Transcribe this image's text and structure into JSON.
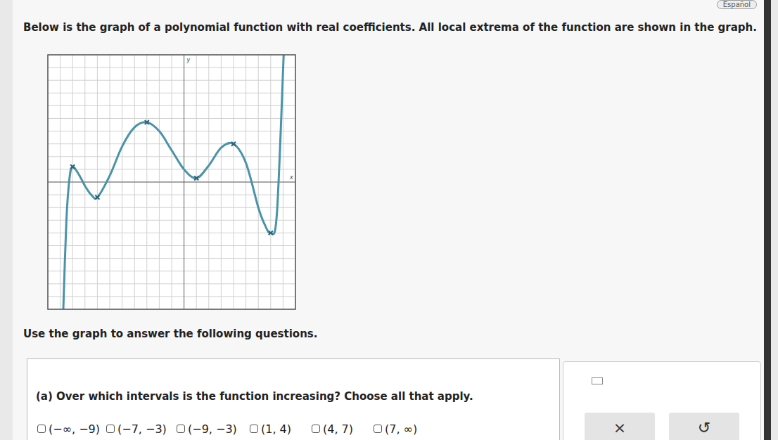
{
  "header": {
    "language": "Español",
    "prompt": "Below is the graph of a polynomial function with real coefficients. All local extrema of the function are shown in the graph."
  },
  "chart_data": {
    "type": "line",
    "x": [
      -9.75,
      -9.5,
      -9.25,
      -9,
      -8.5,
      -8,
      -7.5,
      -7,
      -6,
      -5,
      -4,
      -3,
      -2,
      -1,
      0,
      1,
      2,
      3,
      4,
      5,
      6,
      6.5,
      7,
      7.5,
      8.05
    ],
    "values": [
      -10,
      -3,
      0.3,
      1.2,
      0.6,
      -0.3,
      -1,
      -1.2,
      0.5,
      2.8,
      4.3,
      4.7,
      4,
      2.5,
      1,
      0.3,
      1.3,
      2.7,
      3,
      1.5,
      -2,
      -3.3,
      -4,
      -2.5,
      10
    ],
    "extrema_x": [
      -9,
      -7,
      -3,
      1,
      4,
      7
    ],
    "extrema_y": [
      1.2,
      -1.2,
      4.7,
      0.3,
      3,
      -4
    ],
    "color": "#4a93a8",
    "x_label": "x",
    "y_label": "y",
    "xlim": [
      -11,
      9
    ],
    "ylim": [
      -10,
      10
    ],
    "xticks": [
      -11,
      -10,
      -9,
      -8,
      -7,
      -6,
      -5,
      -4,
      -3,
      -2,
      -1,
      0,
      1,
      2,
      3,
      4,
      5,
      6,
      7,
      8,
      9
    ],
    "yticks": [
      -10,
      -9,
      -8,
      -7,
      -6,
      -5,
      -4,
      -3,
      -2,
      -1,
      0,
      1,
      2,
      3,
      4,
      5,
      6,
      7,
      8,
      9,
      10
    ],
    "grid": true,
    "tick_labels": false
  },
  "instructions": "Use the graph to answer the following questions.",
  "question": {
    "text": "(a) Over which intervals is the function increasing? Choose all that apply.",
    "options": [
      "(−∞, −9)",
      "(−7, −3)",
      "(−9, −3)",
      "(1, 4)",
      "(4, 7)",
      "(7, ∞)"
    ]
  },
  "buttons": [
    "×",
    "↺"
  ]
}
